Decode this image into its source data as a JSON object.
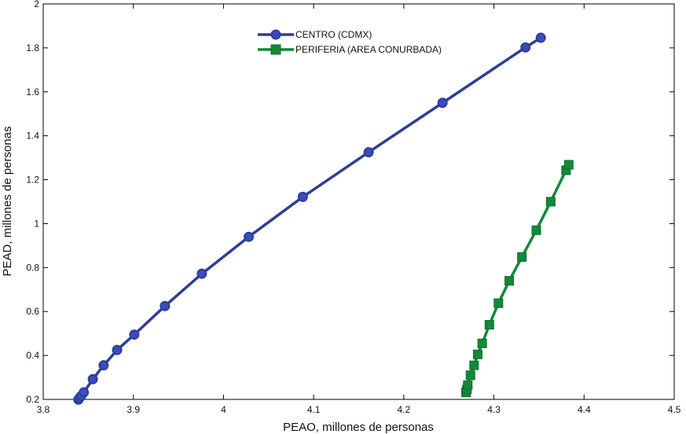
{
  "chart_data": {
    "type": "line",
    "title": "",
    "xlabel": "PEAO, millones de personas",
    "ylabel": "PEAD, millones de personas",
    "xlim": [
      3.8,
      4.5
    ],
    "ylim": [
      0.2,
      2.0
    ],
    "x_ticks": [
      "3.8",
      "3.9",
      "4",
      "4.1",
      "4.2",
      "4.3",
      "4.4",
      "4.5"
    ],
    "y_ticks": [
      "0.2",
      "0.4",
      "0.6",
      "0.8",
      "1",
      "1.2",
      "1.4",
      "1.6",
      "1.8",
      "2"
    ],
    "grid": false,
    "legend_position": "top-center",
    "series": [
      {
        "name": "CENTRO (CDMX)",
        "color": "#2e3d9b",
        "marker": "circle",
        "points": [
          [
            3.839,
            0.199
          ],
          [
            3.84,
            0.205
          ],
          [
            3.842,
            0.215
          ],
          [
            3.845,
            0.232
          ],
          [
            3.855,
            0.292
          ],
          [
            3.867,
            0.355
          ],
          [
            3.882,
            0.425
          ],
          [
            3.901,
            0.495
          ],
          [
            3.935,
            0.625
          ],
          [
            3.976,
            0.772
          ],
          [
            4.028,
            0.94
          ],
          [
            4.088,
            1.122
          ],
          [
            4.161,
            1.325
          ],
          [
            4.243,
            1.55
          ],
          [
            4.335,
            1.802
          ],
          [
            4.352,
            1.846
          ]
        ]
      },
      {
        "name": "PERIFERIA (AREA CONURBADA)",
        "color": "#13893a",
        "marker": "square",
        "points": [
          [
            4.269,
            0.232
          ],
          [
            4.27,
            0.245
          ],
          [
            4.271,
            0.265
          ],
          [
            4.274,
            0.31
          ],
          [
            4.278,
            0.355
          ],
          [
            4.282,
            0.405
          ],
          [
            4.287,
            0.455
          ],
          [
            4.295,
            0.54
          ],
          [
            4.305,
            0.638
          ],
          [
            4.317,
            0.74
          ],
          [
            4.331,
            0.848
          ],
          [
            4.347,
            0.97
          ],
          [
            4.363,
            1.1
          ],
          [
            4.38,
            1.243
          ],
          [
            4.383,
            1.268
          ]
        ]
      }
    ]
  }
}
